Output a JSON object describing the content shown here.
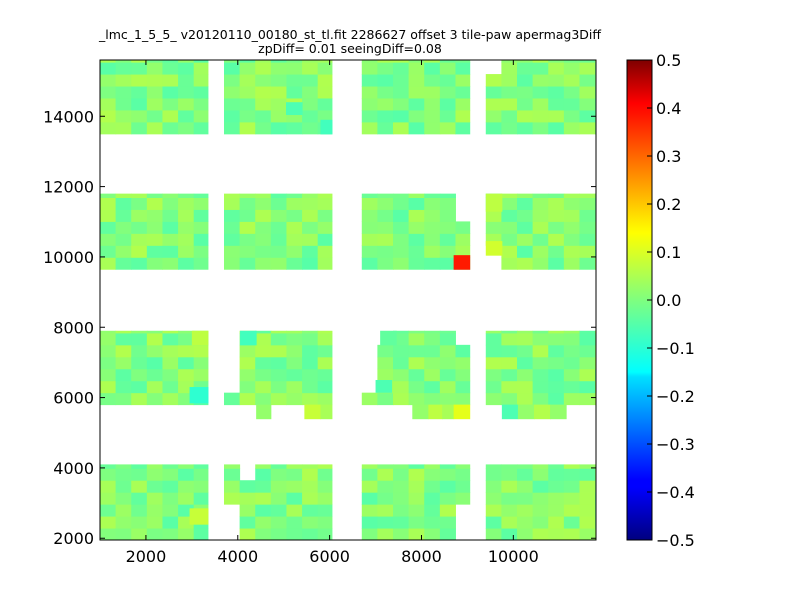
{
  "chart_data": {
    "type": "heatmap",
    "title": "_lmc_1_5_5_ v20120110_00180_st_tl.fit 2286627 offset 3 tile-paw apermag3Diff",
    "subtitle": "zpDiff= 0.01 seeingDiff=0.08",
    "xlim": [
      1000,
      11800
    ],
    "ylim": [
      1950,
      15600
    ],
    "x_ticks": [
      "2000",
      "4000",
      "6000",
      "8000",
      "10000"
    ],
    "y_ticks": [
      "2000",
      "4000",
      "6000",
      "8000",
      "10000",
      "12000",
      "14000"
    ],
    "colorbar": {
      "min": -0.5,
      "max": 0.5,
      "colormap": "jet",
      "ticks": [
        "0.5",
        "0.4",
        "0.3",
        "0.2",
        "0.1",
        "0.0",
        "−0.1",
        "−0.2",
        "−0.3",
        "−0.4",
        "−0.5"
      ]
    },
    "cell_size": 340,
    "detectors": [
      {
        "x": [
          1000,
          3350
        ],
        "y": [
          13500,
          15600
        ]
      },
      {
        "x": [
          3700,
          6050
        ],
        "y": [
          13500,
          15600
        ]
      },
      {
        "x": [
          6700,
          9050
        ],
        "y": [
          13500,
          15600
        ]
      },
      {
        "x": [
          9400,
          11800
        ],
        "y": [
          13500,
          15600
        ]
      },
      {
        "x": [
          1000,
          3350
        ],
        "y": [
          9650,
          11800
        ]
      },
      {
        "x": [
          3700,
          6050
        ],
        "y": [
          9650,
          11800
        ]
      },
      {
        "x": [
          6700,
          9050
        ],
        "y": [
          9650,
          11800
        ]
      },
      {
        "x": [
          9400,
          11800
        ],
        "y": [
          9650,
          11800
        ]
      },
      {
        "x": [
          1000,
          3350
        ],
        "y": [
          5800,
          7900
        ]
      },
      {
        "x": [
          3700,
          6050
        ],
        "y": [
          5800,
          7900
        ]
      },
      {
        "x": [
          6700,
          9050
        ],
        "y": [
          5800,
          7900
        ]
      },
      {
        "x": [
          9400,
          11800
        ],
        "y": [
          5800,
          7900
        ]
      },
      {
        "x": [
          1000,
          3350
        ],
        "y": [
          1950,
          4100
        ]
      },
      {
        "x": [
          3700,
          6050
        ],
        "y": [
          1950,
          4100
        ]
      },
      {
        "x": [
          6700,
          9050
        ],
        "y": [
          1950,
          4100
        ]
      },
      {
        "x": [
          9400,
          11800
        ],
        "y": [
          1950,
          4100
        ]
      }
    ],
    "missing_cells": [
      {
        "x": [
          9400,
          9750
        ],
        "y": [
          15250,
          15600
        ]
      },
      {
        "x": [
          8700,
          9050
        ],
        "y": [
          11100,
          11800
        ]
      },
      {
        "x": [
          9400,
          9750
        ],
        "y": [
          9650,
          10300
        ]
      },
      {
        "x": [
          3700,
          4050
        ],
        "y": [
          6100,
          7900
        ]
      },
      {
        "x": [
          6700,
          7050
        ],
        "y": [
          6100,
          7900
        ]
      },
      {
        "x": [
          7050,
          7350
        ],
        "y": [
          7500,
          7900
        ]
      },
      {
        "x": [
          8650,
          9050
        ],
        "y": [
          7500,
          7900
        ]
      },
      {
        "x": [
          4050,
          4400
        ],
        "y": [
          3650,
          4100
        ]
      },
      {
        "x": [
          3700,
          4050
        ],
        "y": [
          1950,
          3100
        ]
      },
      {
        "x": [
          8700,
          9050
        ],
        "y": [
          1950,
          2850
        ]
      }
    ],
    "extra_cells": [
      {
        "x": [
          4400,
          4720
        ],
        "y": [
          5400,
          5800
        ],
        "value": 0.02
      },
      {
        "x": [
          5450,
          5800
        ],
        "y": [
          5400,
          5800
        ],
        "value": 0.07
      },
      {
        "x": [
          5800,
          6050
        ],
        "y": [
          5400,
          5800
        ],
        "value": 0.04
      },
      {
        "x": [
          7800,
          8150
        ],
        "y": [
          5400,
          5800
        ],
        "value": 0.02
      },
      {
        "x": [
          8150,
          8450
        ],
        "y": [
          5400,
          5800
        ],
        "value": 0.06
      },
      {
        "x": [
          8450,
          8700
        ],
        "y": [
          5400,
          5800
        ],
        "value": 0.04
      },
      {
        "x": [
          8700,
          9050
        ],
        "y": [
          5400,
          5800
        ],
        "value": 0.1
      },
      {
        "x": [
          9750,
          10100
        ],
        "y": [
          5400,
          5800
        ],
        "value": -0.05
      },
      {
        "x": [
          10100,
          10450
        ],
        "y": [
          5400,
          5800
        ],
        "value": 0.02
      },
      {
        "x": [
          10450,
          10800
        ],
        "y": [
          5400,
          5800
        ],
        "value": 0.05
      },
      {
        "x": [
          10800,
          11150
        ],
        "y": [
          5400,
          5800
        ],
        "value": 0.02
      }
    ],
    "highlight_cells": [
      {
        "x": [
          8700,
          9050
        ],
        "y": [
          9650,
          10050
        ],
        "value": 0.35
      },
      {
        "x": [
          2950,
          3350
        ],
        "y": [
          5850,
          6300
        ],
        "value": -0.08
      },
      {
        "x": [
          9400,
          9750
        ],
        "y": [
          10050,
          10450
        ],
        "value": 0.08
      },
      {
        "x": [
          9400,
          9750
        ],
        "y": [
          11300,
          11800
        ],
        "value": 0.06
      },
      {
        "x": [
          2950,
          3350
        ],
        "y": [
          2400,
          2850
        ],
        "value": 0.07
      },
      {
        "x": [
          3000,
          3350
        ],
        "y": [
          7500,
          7900
        ],
        "value": 0.06
      },
      {
        "x": [
          5800,
          6050
        ],
        "y": [
          13500,
          13900
        ],
        "value": -0.06
      },
      {
        "x": [
          4050,
          4400
        ],
        "y": [
          7500,
          7900
        ],
        "value": -0.06
      },
      {
        "x": [
          7100,
          7450
        ],
        "y": [
          7500,
          7900
        ],
        "value": -0.03
      },
      {
        "x": [
          7000,
          7350
        ],
        "y": [
          6150,
          6500
        ],
        "value": -0.05
      },
      {
        "x": [
          5050,
          5400
        ],
        "y": [
          14050,
          14400
        ],
        "value": -0.05
      }
    ]
  }
}
